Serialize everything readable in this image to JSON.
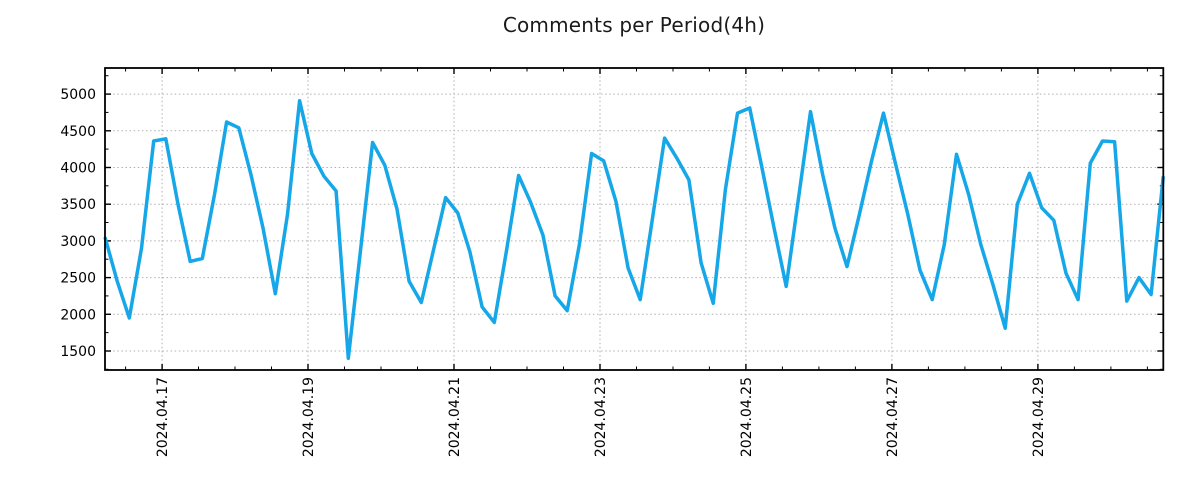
{
  "title": "Comments per Period(4h)",
  "chart_data": {
    "type": "line",
    "title": "Comments per Period(4h)",
    "xlabel": "",
    "ylabel": "",
    "legend": null,
    "grid": true,
    "line_color": "#16a7e8",
    "grid_color": "#b0b0b0",
    "axis_color": "#000000",
    "tick_label_color": "#000000",
    "period_hours": 4,
    "values": [
      3050,
      2450,
      1950,
      2900,
      4360,
      4390,
      3500,
      2720,
      2760,
      3630,
      4620,
      4540,
      3900,
      3170,
      2280,
      3360,
      4910,
      4190,
      3880,
      3680,
      1400,
      2870,
      4340,
      4030,
      3440,
      2450,
      2160,
      2870,
      3590,
      3380,
      2850,
      2100,
      1890,
      2860,
      3890,
      3520,
      3080,
      2250,
      2050,
      2950,
      4190,
      4090,
      3540,
      2630,
      2200,
      3300,
      4400,
      4130,
      3830,
      2700,
      2150,
      3700,
      4740,
      4810,
      4000,
      3180,
      2380,
      3570,
      4760,
      3900,
      3175,
      2650,
      3350,
      4080,
      4740,
      4040,
      3360,
      2600,
      2200,
      2950,
      4180,
      3630,
      2950,
      2400,
      1810,
      3500,
      3920,
      3450,
      3280,
      2560,
      2200,
      4060,
      4360,
      4350,
      2180,
      2500,
      2270,
      3880
    ],
    "x_tick_labels": [
      "2024.04.17",
      "2024.04.19",
      "2024.04.21",
      "2024.04.23",
      "2024.04.25",
      "2024.04.27",
      "2024.04.29"
    ],
    "x_tick_indices": [
      4.69,
      16.69,
      28.69,
      40.69,
      52.69,
      64.69,
      76.69
    ],
    "x_minor_tick_every_points": 3,
    "y_ticks": [
      1500,
      2000,
      2500,
      3000,
      3500,
      4000,
      4500,
      5000
    ],
    "y_minor_tick_step": 250,
    "ylim": [
      1241,
      5355
    ]
  }
}
